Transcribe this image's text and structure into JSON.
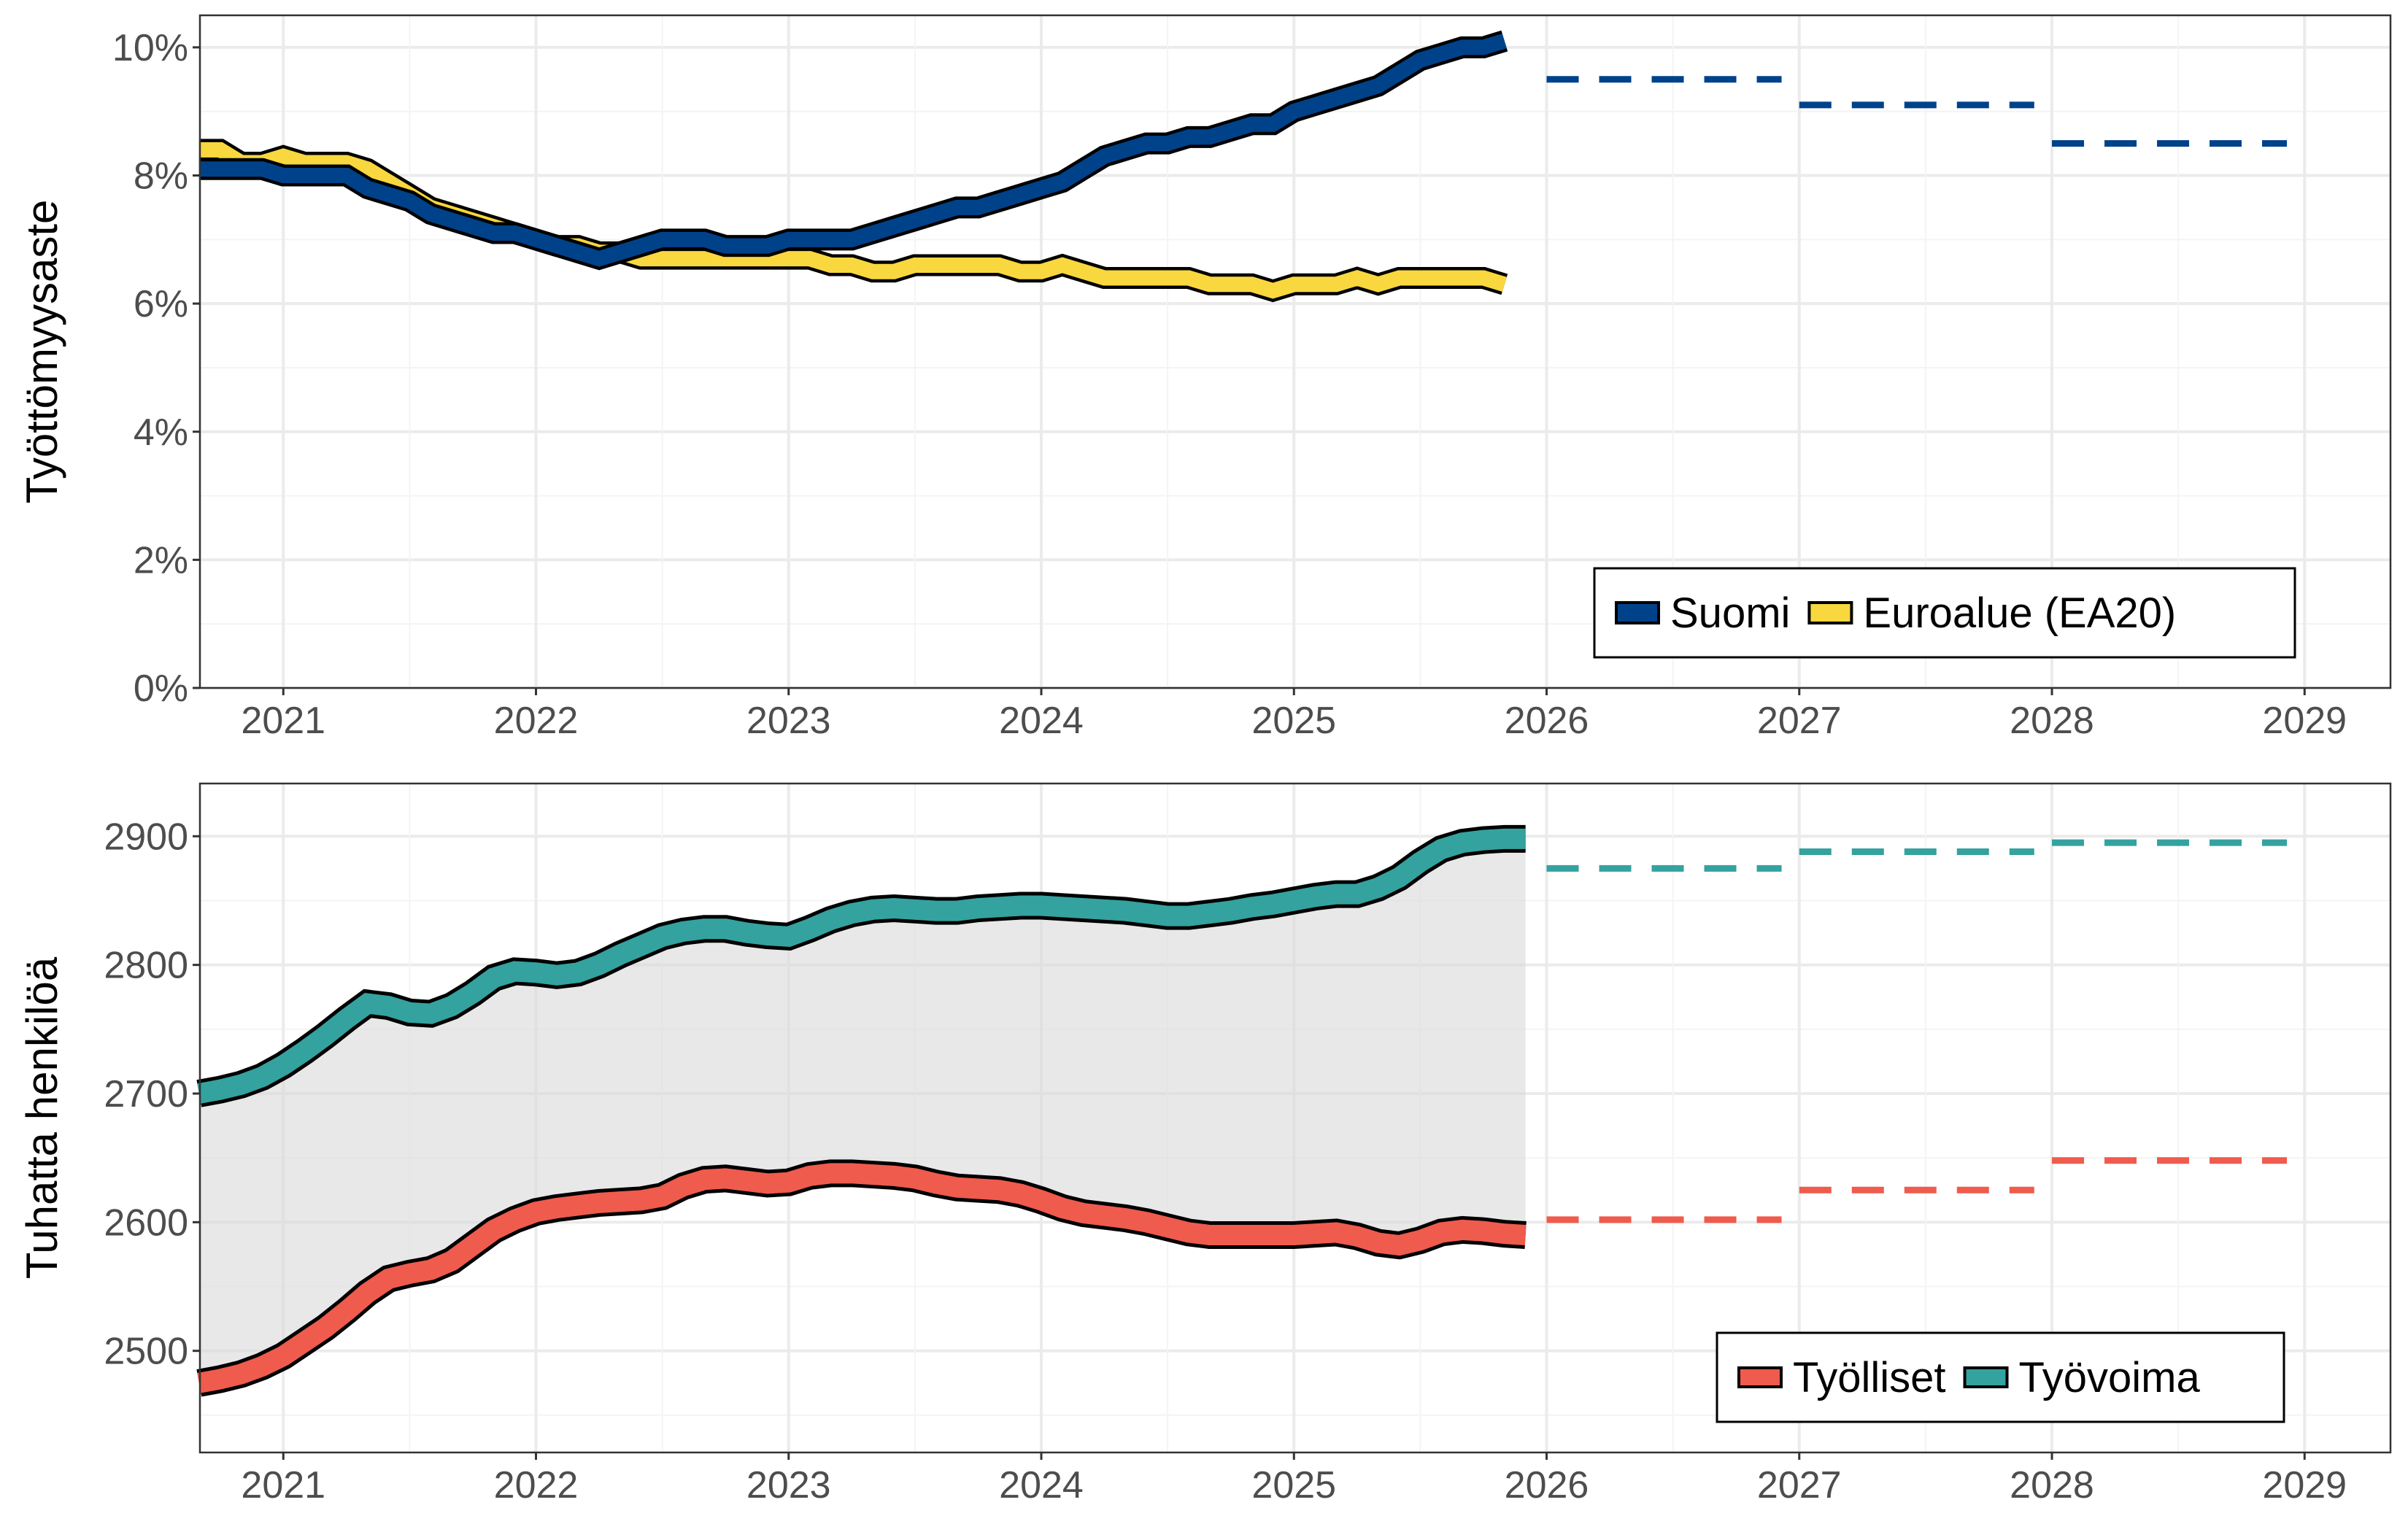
{
  "chart_data": [
    {
      "type": "line",
      "ylabel": "Työttömyysaste",
      "xlabel": "",
      "ylim": [
        0,
        10.5
      ],
      "xlim": [
        2020.67,
        2029.34
      ],
      "y_ticks": [
        "0%",
        "2%",
        "4%",
        "6%",
        "8%",
        "10%"
      ],
      "y_tick_values": [
        0,
        2,
        4,
        6,
        8,
        10
      ],
      "x_ticks": [
        "2021",
        "2022",
        "2023",
        "2024",
        "2025",
        "2026",
        "2027",
        "2028",
        "2029"
      ],
      "grid": true,
      "legend_position": "bottom-right",
      "x_start": "2020-09",
      "frequency": "monthly",
      "series": [
        {
          "name": "Suomi",
          "color": "#00428a",
          "values": [
            8.1,
            8.1,
            8.1,
            8.1,
            8.0,
            8.0,
            8.0,
            8.0,
            7.8,
            7.7,
            7.6,
            7.4,
            7.3,
            7.2,
            7.1,
            7.1,
            7.0,
            6.9,
            6.8,
            6.7,
            6.8,
            6.9,
            7.0,
            7.0,
            7.0,
            6.9,
            6.9,
            6.9,
            7.0,
            7.0,
            7.0,
            7.0,
            7.1,
            7.2,
            7.3,
            7.4,
            7.5,
            7.5,
            7.6,
            7.7,
            7.8,
            7.9,
            8.1,
            8.3,
            8.4,
            8.5,
            8.5,
            8.6,
            8.6,
            8.7,
            8.8,
            8.8,
            9.0,
            9.1,
            9.2,
            9.3,
            9.4,
            9.6,
            9.8,
            9.9,
            10.0,
            10.0,
            10.1
          ],
          "forecast": [
            {
              "year": 2026,
              "value": 9.5
            },
            {
              "year": 2027,
              "value": 9.1
            },
            {
              "year": 2028,
              "value": 8.5
            }
          ]
        },
        {
          "name": "Euroalue (EA20)",
          "color": "#f9d73e",
          "values": [
            8.4,
            8.4,
            8.2,
            8.2,
            8.3,
            8.2,
            8.2,
            8.2,
            8.1,
            7.9,
            7.7,
            7.5,
            7.4,
            7.3,
            7.2,
            7.1,
            7.0,
            6.9,
            6.9,
            6.8,
            6.8,
            6.7,
            6.7,
            6.7,
            6.7,
            6.7,
            6.7,
            6.7,
            6.7,
            6.7,
            6.6,
            6.6,
            6.5,
            6.5,
            6.6,
            6.6,
            6.6,
            6.6,
            6.6,
            6.5,
            6.5,
            6.6,
            6.5,
            6.4,
            6.4,
            6.4,
            6.4,
            6.4,
            6.3,
            6.3,
            6.3,
            6.2,
            6.3,
            6.3,
            6.3,
            6.4,
            6.3,
            6.4,
            6.4,
            6.4,
            6.4,
            6.4,
            6.3
          ],
          "forecast": []
        }
      ]
    },
    {
      "type": "line",
      "ylabel": "Tuhatta henkilöä",
      "xlabel": "",
      "ylim": [
        2421,
        2941
      ],
      "xlim": [
        2020.67,
        2029.34
      ],
      "y_ticks": [
        "2500",
        "2600",
        "2700",
        "2800",
        "2900"
      ],
      "y_tick_values": [
        2500,
        2600,
        2700,
        2800,
        2900
      ],
      "x_ticks": [
        "2021",
        "2022",
        "2023",
        "2024",
        "2025",
        "2026",
        "2027",
        "2028",
        "2029"
      ],
      "grid": true,
      "legend_position": "bottom-right",
      "x_start": "2020-09",
      "frequency": "monthly",
      "shaded_between_series": true,
      "series": [
        {
          "name": "Työlliset",
          "color": "#ef5b4d",
          "values": [
            2475,
            2478,
            2482,
            2488,
            2496,
            2507,
            2518,
            2531,
            2545,
            2556,
            2560,
            2563,
            2570,
            2582,
            2594,
            2602,
            2608,
            2611,
            2613,
            2615,
            2616,
            2617,
            2620,
            2628,
            2633,
            2634,
            2632,
            2630,
            2631,
            2636,
            2638,
            2638,
            2637,
            2636,
            2634,
            2630,
            2627,
            2626,
            2625,
            2622,
            2617,
            2611,
            2607,
            2605,
            2603,
            2600,
            2596,
            2592,
            2590,
            2590,
            2590,
            2590,
            2590,
            2591,
            2592,
            2589,
            2584,
            2582,
            2586,
            2592,
            2594,
            2593,
            2591,
            2590
          ],
          "forecast": [
            {
              "year": 2026,
              "value": 2602
            },
            {
              "year": 2027,
              "value": 2625
            },
            {
              "year": 2028,
              "value": 2648
            }
          ]
        },
        {
          "name": "Työvoima",
          "color": "#34a29f",
          "values": [
            2700,
            2703,
            2707,
            2713,
            2722,
            2733,
            2745,
            2758,
            2770,
            2768,
            2763,
            2762,
            2768,
            2778,
            2790,
            2795,
            2794,
            2792,
            2794,
            2800,
            2808,
            2815,
            2822,
            2826,
            2828,
            2828,
            2825,
            2823,
            2822,
            2828,
            2835,
            2840,
            2843,
            2844,
            2843,
            2842,
            2842,
            2844,
            2845,
            2846,
            2846,
            2845,
            2844,
            2843,
            2842,
            2840,
            2838,
            2838,
            2840,
            2842,
            2845,
            2847,
            2850,
            2853,
            2855,
            2855,
            2860,
            2868,
            2880,
            2890,
            2895,
            2897,
            2898,
            2898
          ],
          "forecast": [
            {
              "year": 2026,
              "value": 2875
            },
            {
              "year": 2027,
              "value": 2888
            },
            {
              "year": 2028,
              "value": 2895
            }
          ]
        }
      ]
    }
  ]
}
